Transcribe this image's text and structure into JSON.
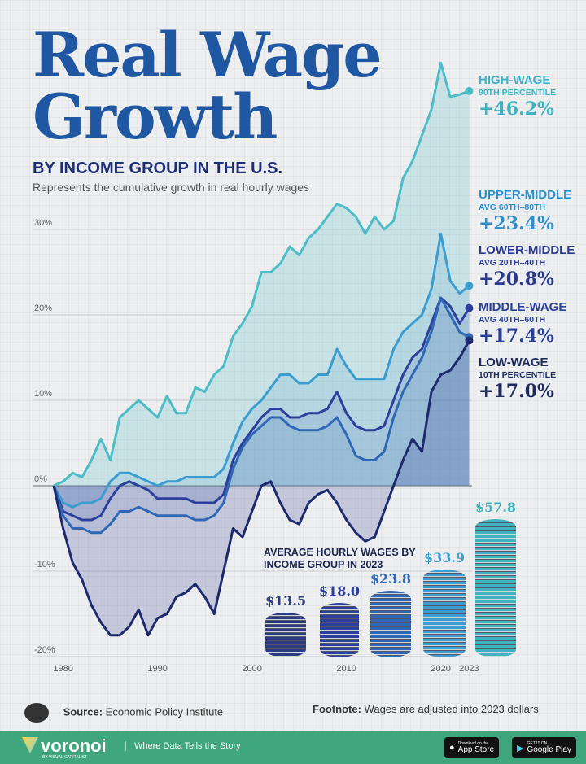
{
  "header": {
    "title": "Real Wage Growth",
    "subtitle": "BY INCOME GROUP IN THE U.S.",
    "description": "Represents the cumulative growth in real hourly wages"
  },
  "chart_data": {
    "type": "line",
    "ylim": [
      -20,
      50
    ],
    "yticks": [
      "30%",
      "20%",
      "10%",
      "0%",
      "-10%",
      "-20%"
    ],
    "ytick_values": [
      30,
      20,
      10,
      0,
      -10,
      -20
    ],
    "xticks": [
      "1980",
      "1990",
      "2000",
      "2010",
      "2020",
      "2023"
    ],
    "xtick_values": [
      1980,
      1990,
      2000,
      2010,
      2020,
      2023
    ],
    "x": [
      1979,
      1980,
      1981,
      1982,
      1983,
      1984,
      1985,
      1986,
      1987,
      1988,
      1989,
      1990,
      1991,
      1992,
      1993,
      1994,
      1995,
      1996,
      1997,
      1998,
      1999,
      2000,
      2001,
      2002,
      2003,
      2004,
      2005,
      2006,
      2007,
      2008,
      2009,
      2010,
      2011,
      2012,
      2013,
      2014,
      2015,
      2016,
      2017,
      2018,
      2019,
      2020,
      2021,
      2022,
      2023
    ],
    "series": [
      {
        "name": "HIGH-WAGE",
        "detail": "90TH PERCENTILE",
        "end_label": "+46.2%",
        "color": "#4cbcc6",
        "fill": "rgba(76,188,198,0.22)",
        "values": [
          0,
          0.5,
          1.5,
          1,
          3,
          5.5,
          3,
          8,
          9,
          10,
          9,
          8,
          10.5,
          8.5,
          8.5,
          11.5,
          11,
          13,
          14,
          17.5,
          19,
          21,
          25,
          25,
          26,
          28,
          27,
          29,
          30,
          31.5,
          33,
          32.5,
          31.5,
          29.5,
          31.5,
          30,
          31,
          36,
          38,
          41,
          44,
          49.5,
          45.5,
          45.8,
          46.2
        ]
      },
      {
        "name": "UPPER-MIDDLE",
        "detail": "AVG 60TH–80TH",
        "end_label": "+23.4%",
        "color": "#3a9ccf",
        "fill": "rgba(58,156,207,0.15)",
        "values": [
          0,
          -2,
          -2.5,
          -2,
          -2,
          -1.5,
          0.5,
          1.5,
          1.5,
          1,
          0.5,
          0,
          0.5,
          0.5,
          1,
          1,
          1,
          1,
          2,
          5,
          7.5,
          9,
          10,
          11.5,
          13,
          13,
          12,
          12,
          13,
          13,
          16,
          14,
          12.5,
          12.5,
          12.5,
          12.5,
          16,
          18,
          19,
          20,
          23,
          29.5,
          24,
          22.5,
          23.4
        ]
      },
      {
        "name": "LOWER-MIDDLE",
        "detail": "AVG 20TH–40TH",
        "end_label": "+20.8%",
        "color": "#2d3f9c",
        "fill": "rgba(45,63,156,0.10)",
        "values": [
          0,
          -3,
          -3.5,
          -4,
          -4,
          -3.5,
          -1.5,
          0,
          0.5,
          0,
          -0.5,
          -1.5,
          -1.5,
          -1.5,
          -1.5,
          -2,
          -2,
          -2,
          -1,
          3,
          5,
          6.5,
          8,
          9,
          9,
          8,
          8,
          8.5,
          8.5,
          9,
          11,
          8.5,
          7,
          6.5,
          6.5,
          7,
          10,
          13,
          15,
          16,
          19,
          22,
          21,
          19,
          20.8
        ]
      },
      {
        "name": "MIDDLE-WAGE",
        "detail": "AVG 40TH–60TH",
        "end_label": "+17.4%",
        "color": "#2f67b7",
        "fill": "rgba(47,103,183,0.10)",
        "values": [
          0,
          -3.5,
          -5,
          -5,
          -5.5,
          -5.5,
          -4.5,
          -3,
          -3,
          -2.5,
          -3,
          -3.5,
          -3.5,
          -3.5,
          -3.5,
          -4,
          -4,
          -3.5,
          -2,
          2,
          4.5,
          6,
          7,
          8,
          8,
          7,
          6.5,
          6.5,
          6.5,
          7,
          8,
          6,
          3.5,
          3,
          3,
          4,
          8,
          11,
          13,
          15,
          18,
          22,
          20,
          18,
          17.4
        ]
      },
      {
        "name": "LOW-WAGE",
        "detail": "10TH PERCENTILE",
        "end_label": "+17.0%",
        "color": "#1d2a6e",
        "fill": "rgba(60,70,150,0.22)",
        "values": [
          0,
          -5,
          -9,
          -11,
          -14,
          -16,
          -17.5,
          -17.5,
          -16.5,
          -14.5,
          -17.5,
          -15.5,
          -15,
          -13,
          -12.5,
          -11.5,
          -13,
          -15,
          -10,
          -5,
          -6,
          -3,
          0,
          0.5,
          -2,
          -4,
          -4.5,
          -2,
          -1,
          -0.5,
          -2,
          -4,
          -5.5,
          -6.5,
          -6,
          -3,
          0,
          3,
          5.5,
          4,
          11,
          13,
          13.5,
          15,
          17
        ]
      }
    ]
  },
  "coins": {
    "title": "AVERAGE HOURLY WAGES BY INCOME GROUP IN 2023",
    "items": [
      {
        "label": "$13.5",
        "value": 13.5,
        "color": "#2c3a80"
      },
      {
        "label": "$18.0",
        "value": 18.0,
        "color": "#2d3f9c"
      },
      {
        "label": "$23.8",
        "value": 23.8,
        "color": "#2f67b7"
      },
      {
        "label": "$33.9",
        "value": 33.9,
        "color": "#3a9ccf"
      },
      {
        "label": "$57.8",
        "value": 57.8,
        "color": "#3fb3c0"
      }
    ]
  },
  "footer": {
    "source_label": "Source:",
    "source": "Economic Policy Institute",
    "footnote_label": "Footnote:",
    "footnote": "Wages are adjusted into 2023 dollars",
    "brand": "voronoi",
    "brand_sub": "BY VISUAL CAPITALIST",
    "tagline": "Where Data Tells the Story",
    "app_store": "App Store",
    "app_store_sub": "Download on the",
    "google_play": "Google Play",
    "google_play_sub": "GET IT ON",
    "bar_color": "#3fa67e"
  }
}
